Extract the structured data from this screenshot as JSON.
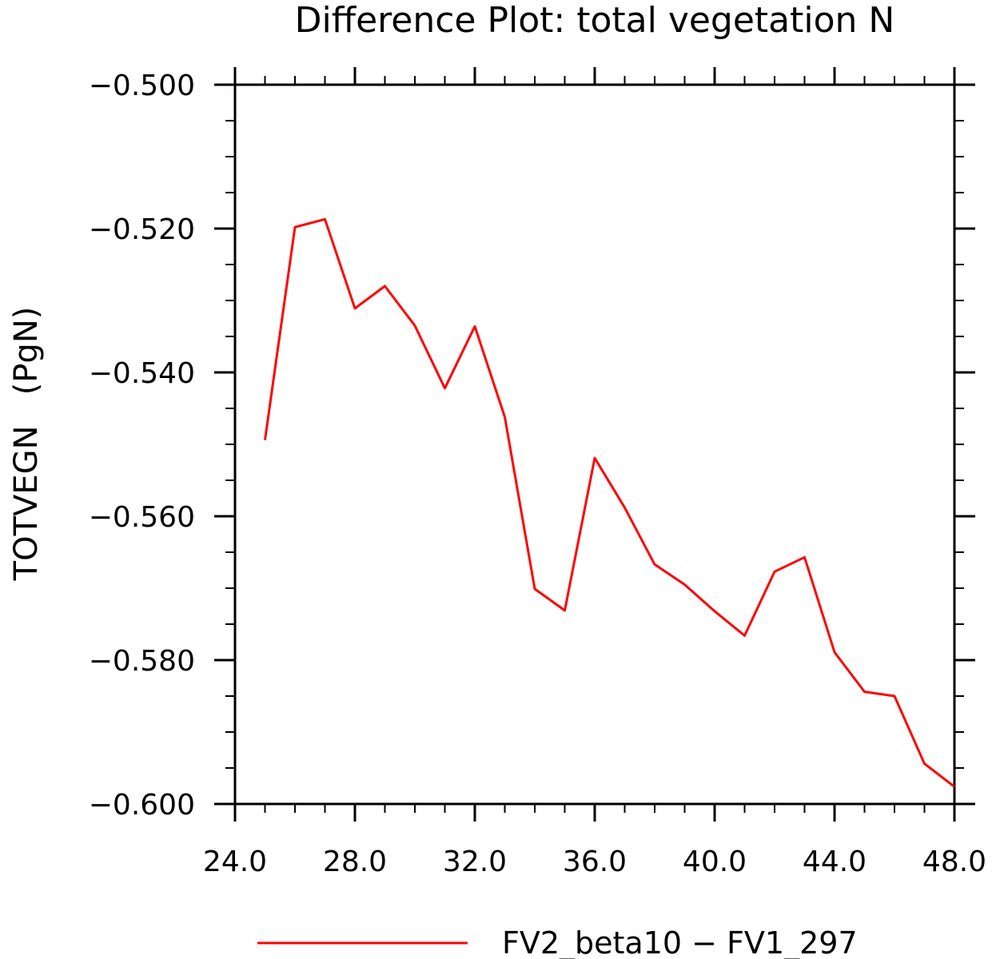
{
  "chart_data": {
    "type": "line",
    "title": "Difference Plot: total vegetation N",
    "ylabel": "TOTVEGN   (PgN)",
    "xlabel": "",
    "xlim": [
      24,
      48
    ],
    "ylim": [
      -0.6,
      -0.5
    ],
    "xticks": [
      {
        "value": 24,
        "label": "24.0"
      },
      {
        "value": 28,
        "label": "28.0"
      },
      {
        "value": 32,
        "label": "32.0"
      },
      {
        "value": 36,
        "label": "36.0"
      },
      {
        "value": 40,
        "label": "40.0"
      },
      {
        "value": 44,
        "label": "44.0"
      },
      {
        "value": 48,
        "label": "48.0"
      }
    ],
    "yticks": [
      {
        "value": -0.5,
        "label": "−0.500"
      },
      {
        "value": -0.52,
        "label": "−0.520"
      },
      {
        "value": -0.54,
        "label": "−0.540"
      },
      {
        "value": -0.56,
        "label": "−0.560"
      },
      {
        "value": -0.58,
        "label": "−0.580"
      },
      {
        "value": -0.6,
        "label": "−0.600"
      }
    ],
    "grid": false,
    "legend_position": "bottom",
    "series": [
      {
        "name": "FV2_beta10 − FV1_297",
        "color": "#ff0000",
        "x": [
          25,
          26,
          27,
          28,
          29,
          30,
          31,
          32,
          33,
          34,
          35,
          36,
          37,
          38,
          39,
          40,
          41,
          42,
          43,
          44,
          45,
          46,
          47,
          48
        ],
        "y": [
          -0.5494,
          -0.5198,
          -0.5187,
          -0.5311,
          -0.528,
          -0.5335,
          -0.5422,
          -0.5336,
          -0.5462,
          -0.5701,
          -0.5731,
          -0.5519,
          -0.5588,
          -0.5667,
          -0.5695,
          -0.5732,
          -0.5766,
          -0.5677,
          -0.5657,
          -0.5789,
          -0.5844,
          -0.585,
          -0.5944,
          -0.5976
        ]
      }
    ]
  }
}
